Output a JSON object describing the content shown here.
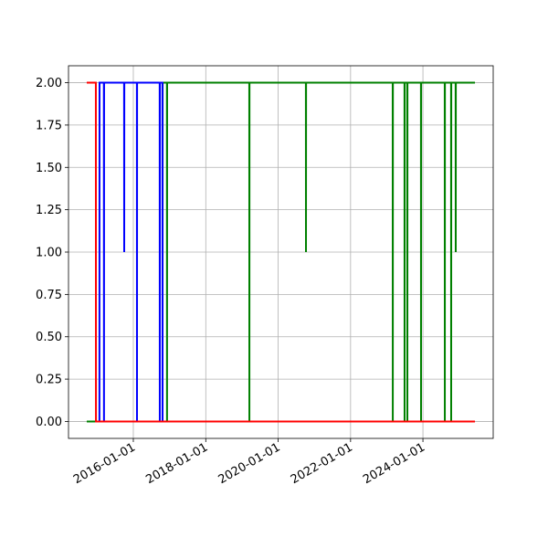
{
  "chart_data": {
    "type": "line",
    "grid": true,
    "xlim": [
      "2014-03-18",
      "2025-12-10"
    ],
    "xticks": [
      "2016-01-01",
      "2018-01-01",
      "2020-01-01",
      "2022-01-01",
      "2024-01-01"
    ],
    "ylim": [
      -0.1,
      2.1
    ],
    "yticks": [
      {
        "value": 0,
        "label": "0.00"
      },
      {
        "value": 0.25,
        "label": "0.25"
      },
      {
        "value": 0.5,
        "label": "0.50"
      },
      {
        "value": 0.75,
        "label": "0.75"
      },
      {
        "value": 1,
        "label": "1.00"
      },
      {
        "value": 1.25,
        "label": "1.25"
      },
      {
        "value": 1.5,
        "label": "1.50"
      },
      {
        "value": 1.75,
        "label": "1.75"
      },
      {
        "value": 2,
        "label": "2.00"
      }
    ],
    "series": [
      {
        "color": "#008000",
        "x": [
          "2014-09-18",
          "2016-10-22",
          "2016-10-23",
          "2016-12-05",
          "2016-12-06",
          "2016-12-07",
          "2019-03-16",
          "2019-03-17",
          "2019-03-18",
          "2020-10-07",
          "2020-10-08",
          "2020-10-09",
          "2023-03-02",
          "2023-03-03",
          "2023-03-04",
          "2023-06-29",
          "2023-06-30",
          "2023-07-01",
          "2023-07-27",
          "2023-07-28",
          "2023-07-29",
          "2023-12-12",
          "2023-12-13",
          "2023-12-14",
          "2024-08-08",
          "2024-08-09",
          "2024-08-10",
          "2024-10-11",
          "2024-10-12",
          "2024-10-13",
          "2024-11-26",
          "2024-11-27",
          "2024-11-28",
          "2025-06-09"
        ],
        "values": [
          0,
          0,
          2,
          2,
          0,
          2,
          2,
          0,
          2,
          2,
          1,
          2,
          2,
          0,
          2,
          2,
          0,
          2,
          2,
          0,
          2,
          2,
          0,
          2,
          2,
          0,
          2,
          2,
          0,
          2,
          2,
          1,
          2,
          2
        ]
      },
      {
        "color": "#0000ff",
        "x": [
          "2015-01-24",
          "2015-01-25",
          "2015-03-10",
          "2015-03-11",
          "2015-03-12",
          "2015-09-30",
          "2015-10-01",
          "2015-10-02",
          "2016-02-06",
          "2016-02-07",
          "2016-02-08",
          "2016-09-23",
          "2016-09-24",
          "2016-09-25",
          "2016-10-21",
          "2016-10-22",
          "2016-10-23"
        ],
        "values": [
          0,
          2,
          2,
          0,
          2,
          2,
          1,
          2,
          2,
          0,
          2,
          2,
          0,
          2,
          2,
          0,
          0
        ]
      },
      {
        "color": "#ff0000",
        "x": [
          "2014-09-18",
          "2014-12-19",
          "2014-12-20",
          "2025-06-09"
        ],
        "values": [
          2,
          2,
          0,
          0
        ]
      }
    ]
  }
}
